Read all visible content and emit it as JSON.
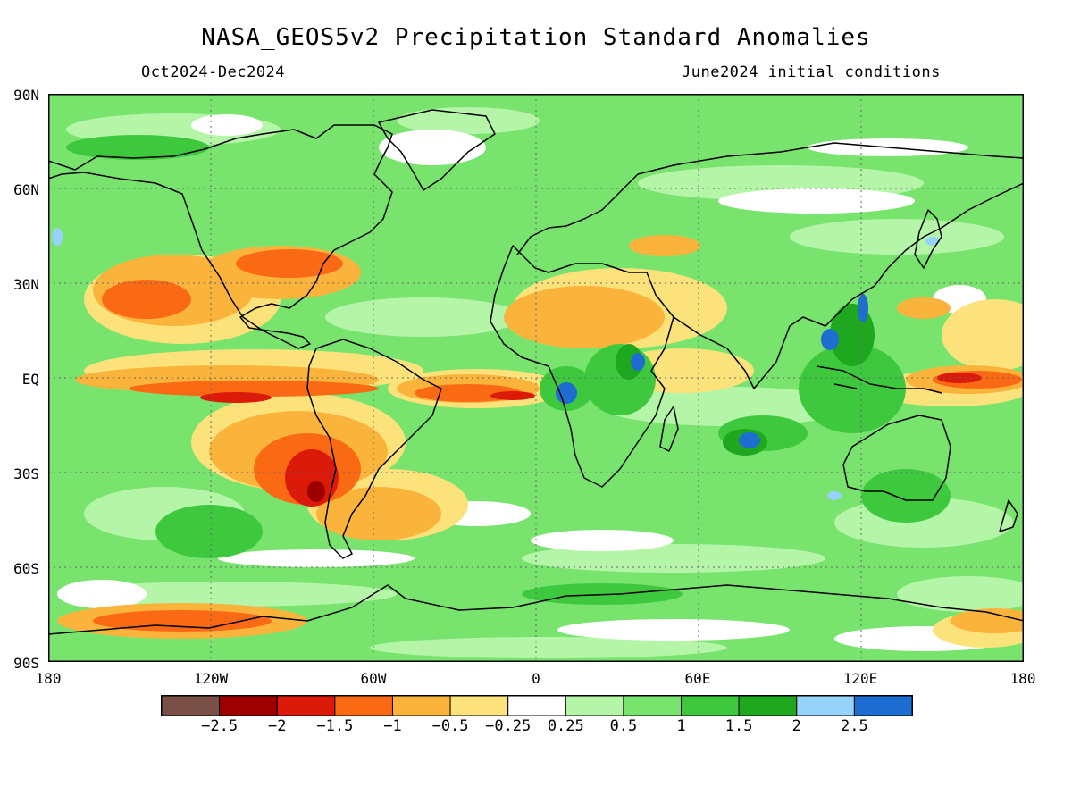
{
  "title": "NASA_GEOS5v2 Precipitation Standard Anomalies",
  "period": "Oct2024-Dec2024",
  "init": "June2024 initial conditions",
  "lat_labels": [
    "90N",
    "60N",
    "30N",
    "EQ",
    "30S",
    "60S",
    "90S"
  ],
  "lon_labels": [
    "180",
    "120W",
    "60W",
    "0",
    "60E",
    "120E",
    "180"
  ],
  "colorbar": {
    "colors": [
      "#7a4f45",
      "#9e0000",
      "#dc1a0a",
      "#fa6a14",
      "#fab43c",
      "#fce27a",
      "#ffffff",
      "#b4f5a8",
      "#78e46e",
      "#3ec83e",
      "#1fa81f",
      "#96d2fa",
      "#1e6ed2"
    ],
    "labels": [
      "-2.5",
      "-2",
      "-1.5",
      "-1",
      "-0.5",
      "-0.25",
      "0.25",
      "0.5",
      "1",
      "1.5",
      "2",
      "2.5"
    ]
  },
  "map": {
    "extent": {
      "lon": [
        -180,
        180
      ],
      "lat": [
        -90,
        90
      ]
    },
    "grid_lines": "dotted at 30-degree latitude intervals",
    "background_color": "#78e46e"
  }
}
